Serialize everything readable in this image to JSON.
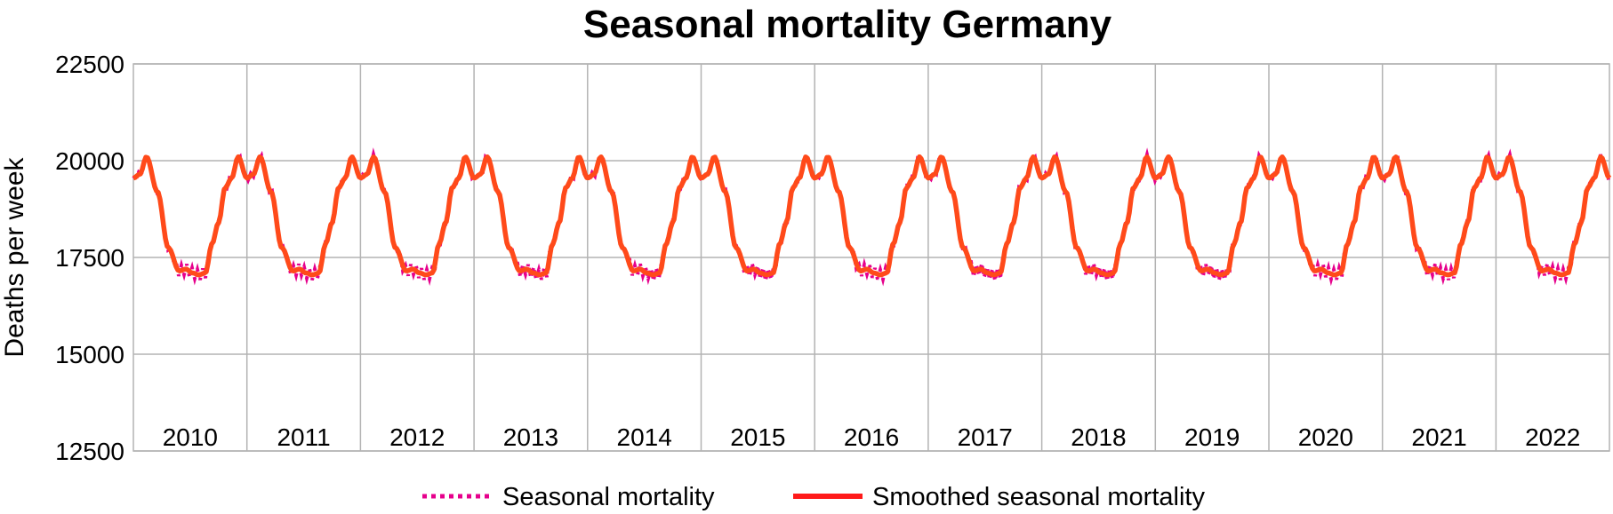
{
  "chart_data": {
    "type": "line",
    "title": "Seasonal mortality Germany",
    "ylabel": "Deaths per week",
    "xlabel": "",
    "ylim": [
      12500,
      22500
    ],
    "y_ticks": [
      12500,
      15000,
      17500,
      20000,
      22500
    ],
    "x_ticks": [
      "2010",
      "2011",
      "2012",
      "2013",
      "2014",
      "2015",
      "2016",
      "2017",
      "2018",
      "2019",
      "2020",
      "2021",
      "2022"
    ],
    "grid": true,
    "legend_position": "bottom",
    "weekly_profile_x": [
      1,
      4,
      7,
      12,
      17,
      22,
      25,
      28,
      31,
      34,
      37,
      40,
      43,
      46,
      49,
      53
    ],
    "weekly_profile_y": [
      19550,
      19650,
      20100,
      19200,
      17750,
      17150,
      17200,
      17100,
      17050,
      17100,
      17850,
      18400,
      19300,
      19550,
      20100,
      19550
    ],
    "series": [
      {
        "name": "Seasonal mortality",
        "color": "#e6008c",
        "style": "dotted"
      },
      {
        "name": "Smoothed seasonal mortality",
        "color": "#ff4a1a",
        "style": "solid"
      }
    ]
  }
}
